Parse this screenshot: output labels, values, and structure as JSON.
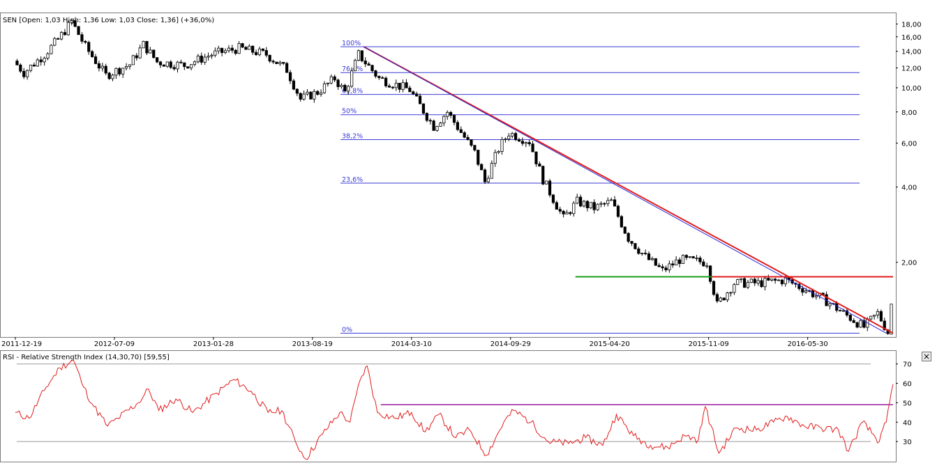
{
  "chart_data": [
    {
      "type": "candlestick",
      "title": "SEN [Open: 1,03  High: 1,36  Low: 1,03  Close: 1,36] (+36,0%)",
      "y_scale": "log",
      "ylim": [
        1.03,
        19.5
      ],
      "y_ticks": [
        {
          "value": 18,
          "label": "18,00"
        },
        {
          "value": 16,
          "label": "16,00"
        },
        {
          "value": 14,
          "label": "14,00"
        },
        {
          "value": 12,
          "label": "12,00"
        },
        {
          "value": 10,
          "label": "10,00"
        },
        {
          "value": 8,
          "label": "8,00"
        },
        {
          "value": 6,
          "label": "6,00"
        },
        {
          "value": 4,
          "label": "4,00"
        },
        {
          "value": 2,
          "label": "2,00"
        }
      ],
      "x_start": "2011-12-19",
      "x_end": "2016-11-21",
      "x_ticks": [
        "2011-12-19",
        "2012-07-09",
        "2013-01-28",
        "2013-08-19",
        "2014-03-10",
        "2014-09-29",
        "2015-04-20",
        "2015-11-09",
        "2016-05-30"
      ],
      "price_path": [
        {
          "date": "2011-12-19",
          "price": 12.8
        },
        {
          "date": "2012-01-09",
          "price": 11.5
        },
        {
          "date": "2012-02-20",
          "price": 13.6
        },
        {
          "date": "2012-03-19",
          "price": 15.6
        },
        {
          "date": "2012-04-16",
          "price": 18.4
        },
        {
          "date": "2012-05-14",
          "price": 14.6
        },
        {
          "date": "2012-06-25",
          "price": 11.2
        },
        {
          "date": "2012-08-13",
          "price": 12.4
        },
        {
          "date": "2012-09-10",
          "price": 14.9
        },
        {
          "date": "2012-10-08",
          "price": 12.7
        },
        {
          "date": "2012-12-03",
          "price": 12.3
        },
        {
          "date": "2013-01-28",
          "price": 13.6
        },
        {
          "date": "2013-03-25",
          "price": 14.4
        },
        {
          "date": "2013-05-20",
          "price": 13.6
        },
        {
          "date": "2013-07-01",
          "price": 11.8
        },
        {
          "date": "2013-07-29",
          "price": 9.0
        },
        {
          "date": "2013-09-02",
          "price": 9.6
        },
        {
          "date": "2013-10-07",
          "price": 10.9
        },
        {
          "date": "2013-10-28",
          "price": 9.6
        },
        {
          "date": "2013-11-25",
          "price": 13.6
        },
        {
          "date": "2014-01-06",
          "price": 10.9
        },
        {
          "date": "2014-03-10",
          "price": 9.8
        },
        {
          "date": "2014-04-28",
          "price": 7.0
        },
        {
          "date": "2014-05-26",
          "price": 8.0
        },
        {
          "date": "2014-07-21",
          "price": 5.5
        },
        {
          "date": "2014-08-11",
          "price": 4.2
        },
        {
          "date": "2014-09-08",
          "price": 5.7
        },
        {
          "date": "2014-09-29",
          "price": 6.6
        },
        {
          "date": "2014-11-10",
          "price": 6.1
        },
        {
          "date": "2014-12-08",
          "price": 4.3
        },
        {
          "date": "2015-01-19",
          "price": 3.0
        },
        {
          "date": "2015-02-16",
          "price": 3.5
        },
        {
          "date": "2015-03-23",
          "price": 3.3
        },
        {
          "date": "2015-04-27",
          "price": 3.5
        },
        {
          "date": "2015-06-01",
          "price": 2.5
        },
        {
          "date": "2015-07-06",
          "price": 2.1
        },
        {
          "date": "2015-08-10",
          "price": 1.85
        },
        {
          "date": "2015-09-14",
          "price": 2.05
        },
        {
          "date": "2015-11-09",
          "price": 2.0
        },
        {
          "date": "2015-11-30",
          "price": 1.35
        },
        {
          "date": "2016-01-04",
          "price": 1.65
        },
        {
          "date": "2016-02-22",
          "price": 1.65
        },
        {
          "date": "2016-04-18",
          "price": 1.7
        },
        {
          "date": "2016-05-30",
          "price": 1.55
        },
        {
          "date": "2016-07-11",
          "price": 1.4
        },
        {
          "date": "2016-08-15",
          "price": 1.25
        },
        {
          "date": "2016-09-26",
          "price": 1.1
        },
        {
          "date": "2016-10-24",
          "price": 1.25
        },
        {
          "date": "2016-11-14",
          "price": 1.05
        },
        {
          "date": "2016-11-21",
          "price": 1.36
        }
      ],
      "last_candle": {
        "open": 1.03,
        "high": 1.36,
        "low": 1.03,
        "close": 1.36
      },
      "fibonacci": {
        "color": "#3a3ad6",
        "levels": [
          {
            "label": "100%",
            "price": 14.6
          },
          {
            "label": "76,4%",
            "price": 11.5
          },
          {
            "label": "61,8%",
            "price": 9.4
          },
          {
            "label": "50%",
            "price": 7.8
          },
          {
            "label": "38,2%",
            "price": 6.2
          },
          {
            "label": "23,6%",
            "price": 4.15
          },
          {
            "label": "0%",
            "price": 1.04
          }
        ]
      },
      "trendlines": [
        {
          "color": "#e21b1b",
          "from": {
            "date": "2013-12-02",
            "price": 14.6
          },
          "to": {
            "date": "2016-11-21",
            "price": 1.04
          }
        },
        {
          "color": "#2323d6",
          "from": {
            "date": "2013-12-02",
            "price": 14.6
          },
          "to": {
            "date": "2016-11-07",
            "price": 1.04
          }
        }
      ],
      "horizontal_lines": [
        {
          "color": "#19a019",
          "from": "2015-02-09",
          "to": "2015-11-16",
          "price": 1.75
        },
        {
          "color": "#e21b1b",
          "from": "2015-11-16",
          "to": "2016-11-21",
          "price": 1.75
        }
      ]
    },
    {
      "type": "line",
      "title": "RSI - Relative Strength Index (14,30,70) [59,55]",
      "ylim": [
        20,
        76
      ],
      "y_ticks": [
        70,
        60,
        50,
        40,
        30
      ],
      "reference_lines": [
        70,
        30
      ],
      "series_color": "#e21b1b",
      "rsi_path": [
        {
          "date": "2011-12-19",
          "value": 45
        },
        {
          "date": "2012-01-16",
          "value": 42
        },
        {
          "date": "2012-02-20",
          "value": 58
        },
        {
          "date": "2012-03-19",
          "value": 68
        },
        {
          "date": "2012-04-16",
          "value": 72
        },
        {
          "date": "2012-05-07",
          "value": 58
        },
        {
          "date": "2012-05-28",
          "value": 48
        },
        {
          "date": "2012-06-25",
          "value": 38
        },
        {
          "date": "2012-07-16",
          "value": 42
        },
        {
          "date": "2012-08-27",
          "value": 50
        },
        {
          "date": "2012-09-17",
          "value": 57
        },
        {
          "date": "2012-10-08",
          "value": 46
        },
        {
          "date": "2012-11-12",
          "value": 52
        },
        {
          "date": "2012-12-17",
          "value": 45
        },
        {
          "date": "2013-02-04",
          "value": 55
        },
        {
          "date": "2013-03-11",
          "value": 62
        },
        {
          "date": "2013-04-15",
          "value": 56
        },
        {
          "date": "2013-05-20",
          "value": 45
        },
        {
          "date": "2013-06-17",
          "value": 46
        },
        {
          "date": "2013-07-15",
          "value": 30
        },
        {
          "date": "2013-08-05",
          "value": 21
        },
        {
          "date": "2013-09-09",
          "value": 34
        },
        {
          "date": "2013-10-14",
          "value": 45
        },
        {
          "date": "2013-11-04",
          "value": 40
        },
        {
          "date": "2013-11-25",
          "value": 62
        },
        {
          "date": "2013-12-09",
          "value": 69
        },
        {
          "date": "2013-12-30",
          "value": 45
        },
        {
          "date": "2014-02-03",
          "value": 42
        },
        {
          "date": "2014-03-10",
          "value": 45
        },
        {
          "date": "2014-04-07",
          "value": 35
        },
        {
          "date": "2014-05-05",
          "value": 44
        },
        {
          "date": "2014-06-09",
          "value": 32
        },
        {
          "date": "2014-07-07",
          "value": 36
        },
        {
          "date": "2014-08-11",
          "value": 23
        },
        {
          "date": "2014-09-15",
          "value": 40
        },
        {
          "date": "2014-10-06",
          "value": 46
        },
        {
          "date": "2014-11-10",
          "value": 40
        },
        {
          "date": "2014-12-15",
          "value": 30
        },
        {
          "date": "2015-01-26",
          "value": 29
        },
        {
          "date": "2015-03-02",
          "value": 32
        },
        {
          "date": "2015-04-06",
          "value": 28
        },
        {
          "date": "2015-05-04",
          "value": 44
        },
        {
          "date": "2015-06-08",
          "value": 33
        },
        {
          "date": "2015-07-13",
          "value": 28
        },
        {
          "date": "2015-08-17",
          "value": 27
        },
        {
          "date": "2015-09-21",
          "value": 33
        },
        {
          "date": "2015-10-19",
          "value": 31
        },
        {
          "date": "2015-11-02",
          "value": 48
        },
        {
          "date": "2015-11-30",
          "value": 24
        },
        {
          "date": "2016-01-04",
          "value": 37
        },
        {
          "date": "2016-02-15",
          "value": 36
        },
        {
          "date": "2016-03-21",
          "value": 40
        },
        {
          "date": "2016-04-18",
          "value": 43
        },
        {
          "date": "2016-05-23",
          "value": 38
        },
        {
          "date": "2016-06-27",
          "value": 37
        },
        {
          "date": "2016-08-01",
          "value": 36
        },
        {
          "date": "2016-08-22",
          "value": 25
        },
        {
          "date": "2016-09-19",
          "value": 40
        },
        {
          "date": "2016-10-24",
          "value": 30
        },
        {
          "date": "2016-11-07",
          "value": 40
        },
        {
          "date": "2016-11-21",
          "value": 59.55
        }
      ],
      "horizontal_lines": [
        {
          "color": "#9b1fa3",
          "from": "2014-01-06",
          "to": "2016-11-21",
          "value": 49
        }
      ]
    }
  ],
  "ui": {
    "close_glyph": "×"
  }
}
